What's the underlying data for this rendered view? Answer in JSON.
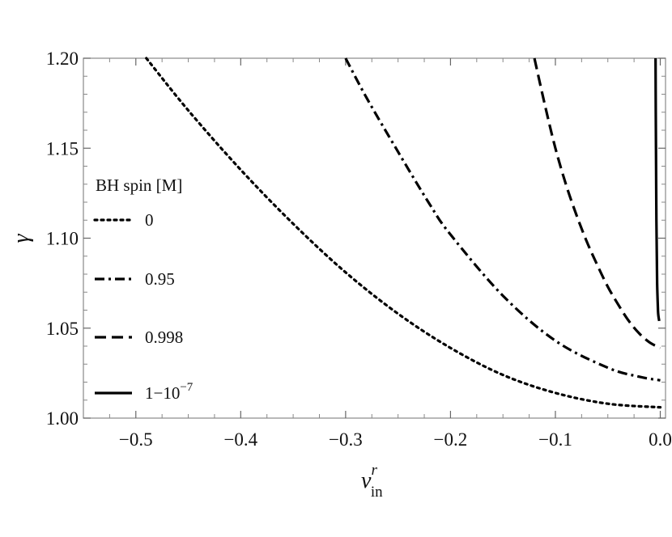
{
  "chart_data": {
    "type": "line",
    "title": "",
    "xlabel": "v",
    "xlabel_sup": "r",
    "xlabel_sub": "in",
    "ylabel": "γ",
    "xlim": [
      -0.55,
      0.005
    ],
    "ylim": [
      1.0,
      1.2
    ],
    "xticks": [
      -0.5,
      -0.4,
      -0.3,
      -0.2,
      -0.1,
      0.0
    ],
    "xtick_labels": [
      "−0.5",
      "−0.4",
      "−0.3",
      "−0.2",
      "−0.1",
      "0.0"
    ],
    "yticks": [
      1.0,
      1.05,
      1.1,
      1.15,
      1.2
    ],
    "ytick_labels": [
      "1.00",
      "1.05",
      "1.10",
      "1.15",
      "1.20"
    ],
    "grid": false,
    "legend": {
      "title": "BH spin [M]",
      "placement": "left",
      "entries": [
        {
          "label": "0",
          "style": "dotted"
        },
        {
          "label": "0.95",
          "style": "dashdot"
        },
        {
          "label": "0.998",
          "style": "dashed"
        },
        {
          "label": "1−10",
          "label_sup": "−7",
          "style": "solid"
        }
      ]
    },
    "series": [
      {
        "name": "0",
        "style": "dotted",
        "x": [
          -0.49,
          -0.45,
          -0.4,
          -0.35,
          -0.3,
          -0.25,
          -0.2,
          -0.15,
          -0.1,
          -0.05,
          0.0
        ],
        "y": [
          1.2,
          1.171,
          1.138,
          1.108,
          1.081,
          1.058,
          1.039,
          1.024,
          1.014,
          1.008,
          1.006
        ]
      },
      {
        "name": "0.95",
        "style": "dashdot",
        "x": [
          -0.3,
          -0.28,
          -0.25,
          -0.22,
          -0.2,
          -0.15,
          -0.1,
          -0.05,
          -0.02,
          0.0
        ],
        "y": [
          1.2,
          1.178,
          1.148,
          1.119,
          1.102,
          1.068,
          1.043,
          1.028,
          1.023,
          1.021
        ]
      },
      {
        "name": "0.998",
        "style": "dashed",
        "x": [
          -0.12,
          -0.11,
          -0.1,
          -0.09,
          -0.08,
          -0.07,
          -0.06,
          -0.05,
          -0.04,
          -0.03,
          -0.02,
          -0.01,
          0.0
        ],
        "y": [
          1.2,
          1.174,
          1.15,
          1.13,
          1.113,
          1.098,
          1.085,
          1.073,
          1.063,
          1.054,
          1.047,
          1.042,
          1.039
        ]
      },
      {
        "name": "1−10⁻⁷",
        "style": "solid",
        "x": [
          -0.0045,
          -0.0043,
          -0.004,
          -0.0037,
          -0.0033,
          -0.003,
          -0.0025,
          -0.0022,
          -0.002,
          -0.0016,
          -0.001
        ],
        "y": [
          1.2,
          1.17,
          1.14,
          1.11,
          1.09,
          1.075,
          1.065,
          1.06,
          1.058,
          1.056,
          1.054
        ]
      }
    ]
  }
}
